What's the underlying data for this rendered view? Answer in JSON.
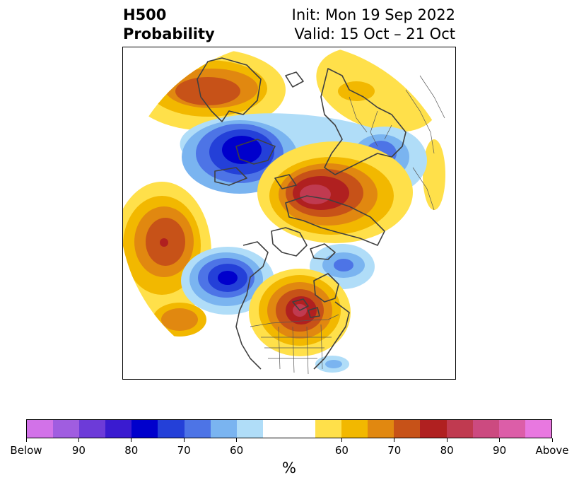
{
  "title": {
    "left_line1": "H500",
    "left_line2": "Probability",
    "right_line1": "Init: Mon 19 Sep 2022",
    "right_line2": "Valid: 15 Oct – 21 Oct"
  },
  "colorbar": {
    "unit": "%",
    "segment_colors": [
      "#d272e8",
      "#a05de0",
      "#6d3bd8",
      "#3a1bd0",
      "#0000cc",
      "#2440d8",
      "#4d74e6",
      "#7ab4f0",
      "#b0ddf8",
      "#ffffff",
      "#ffffff",
      "#ffe04a",
      "#f2b800",
      "#e18810",
      "#c75218",
      "#b02020",
      "#c03a50",
      "#cc4a80",
      "#dc5ea8",
      "#e878e0"
    ],
    "tick_labels": [
      "Below",
      "90",
      "80",
      "70",
      "60",
      "60",
      "70",
      "80",
      "90",
      "Above"
    ]
  },
  "map": {
    "below_colors": {
      "p60": "#b0ddf8",
      "p65": "#7ab4f0",
      "p70": "#4d74e6",
      "p75": "#2440d8",
      "p80": "#0000cc",
      "p85": "#3a1bd0"
    },
    "above_colors": {
      "p60": "#ffe04a",
      "p65": "#f2b800",
      "p70": "#e18810",
      "p75": "#c75218",
      "p80": "#b02020",
      "p85": "#c03a50"
    }
  }
}
